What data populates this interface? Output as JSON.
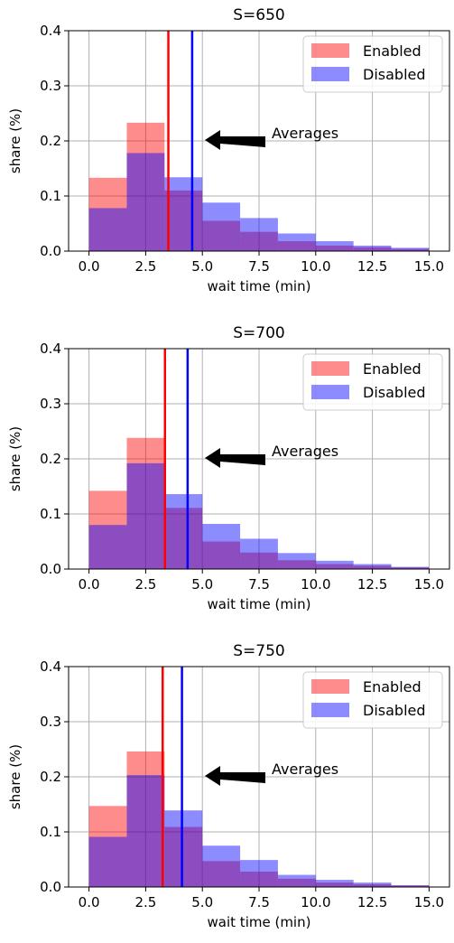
{
  "chart_data": [
    {
      "type": "histogram",
      "title": "S=650",
      "xlabel": "wait time (min)",
      "ylabel": "share (%)",
      "xlim": [
        -0.9,
        15.9
      ],
      "ylim": [
        0,
        0.4
      ],
      "xticks": [
        "0.0",
        "2.5",
        "5.0",
        "7.5",
        "10.0",
        "12.5",
        "15.0"
      ],
      "yticks": [
        "0.0",
        "0.1",
        "0.2",
        "0.3",
        "0.4"
      ],
      "grid": true,
      "legend_position": "top-right",
      "bin_edges": [
        0,
        1.667,
        3.333,
        5.0,
        6.667,
        8.333,
        10.0,
        11.667,
        13.333,
        15.0
      ],
      "series": [
        {
          "name": "Enabled",
          "color": "#ff0000",
          "alpha": 0.45,
          "values": [
            0.133,
            0.233,
            0.11,
            0.055,
            0.035,
            0.018,
            0.01,
            0.007,
            0.004
          ],
          "mean": 3.5
        },
        {
          "name": "Disabled",
          "color": "#0000ff",
          "alpha": 0.45,
          "values": [
            0.078,
            0.178,
            0.134,
            0.088,
            0.06,
            0.032,
            0.018,
            0.01,
            0.006
          ],
          "mean": 4.55
        }
      ],
      "annotation": "Averages"
    },
    {
      "type": "histogram",
      "title": "S=700",
      "xlabel": "wait time (min)",
      "ylabel": "share (%)",
      "xlim": [
        -0.9,
        15.9
      ],
      "ylim": [
        0,
        0.4
      ],
      "xticks": [
        "0.0",
        "2.5",
        "5.0",
        "7.5",
        "10.0",
        "12.5",
        "15.0"
      ],
      "yticks": [
        "0.0",
        "0.1",
        "0.2",
        "0.3",
        "0.4"
      ],
      "grid": true,
      "legend_position": "top-right",
      "bin_edges": [
        0,
        1.667,
        3.333,
        5.0,
        6.667,
        8.333,
        10.0,
        11.667,
        13.333,
        15.0
      ],
      "series": [
        {
          "name": "Enabled",
          "color": "#ff0000",
          "alpha": 0.45,
          "values": [
            0.142,
            0.238,
            0.111,
            0.05,
            0.03,
            0.016,
            0.009,
            0.006,
            0.003
          ],
          "mean": 3.35
        },
        {
          "name": "Disabled",
          "color": "#0000ff",
          "alpha": 0.45,
          "values": [
            0.08,
            0.192,
            0.136,
            0.082,
            0.055,
            0.029,
            0.015,
            0.009,
            0.004
          ],
          "mean": 4.35
        }
      ],
      "annotation": "Averages"
    },
    {
      "type": "histogram",
      "title": "S=750",
      "xlabel": "wait time (min)",
      "ylabel": "share (%)",
      "xlim": [
        -0.9,
        15.9
      ],
      "ylim": [
        0,
        0.4
      ],
      "xticks": [
        "0.0",
        "2.5",
        "5.0",
        "7.5",
        "10.0",
        "12.5",
        "15.0"
      ],
      "yticks": [
        "0.0",
        "0.1",
        "0.2",
        "0.3",
        "0.4"
      ],
      "grid": true,
      "legend_position": "top-right",
      "bin_edges": [
        0,
        1.667,
        3.333,
        5.0,
        6.667,
        8.333,
        10.0,
        11.667,
        13.333,
        15.0
      ],
      "series": [
        {
          "name": "Enabled",
          "color": "#ff0000",
          "alpha": 0.45,
          "values": [
            0.147,
            0.246,
            0.109,
            0.047,
            0.028,
            0.015,
            0.008,
            0.005,
            0.003
          ],
          "mean": 3.25
        },
        {
          "name": "Disabled",
          "color": "#0000ff",
          "alpha": 0.45,
          "values": [
            0.091,
            0.203,
            0.139,
            0.075,
            0.049,
            0.022,
            0.013,
            0.008,
            0.003
          ],
          "mean": 4.1
        }
      ],
      "annotation": "Averages"
    }
  ]
}
